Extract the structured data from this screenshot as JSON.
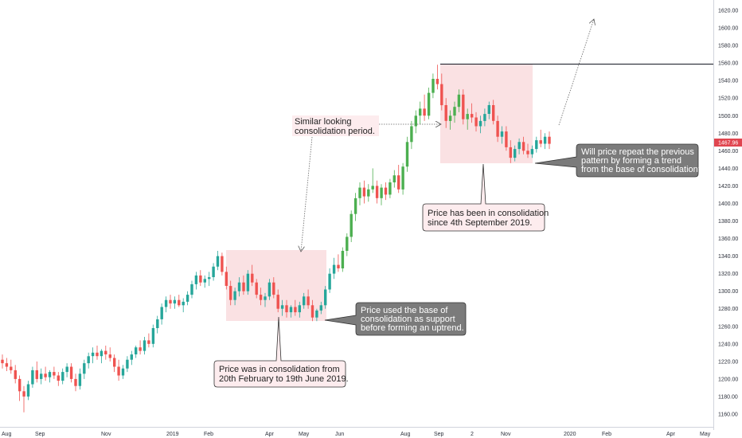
{
  "chart_data": {
    "type": "candlestick",
    "title": "",
    "xlabel": "",
    "ylabel": "",
    "ylim": [
      1150,
      1630
    ],
    "y_ticks": [
      1160,
      1180,
      1200,
      1220,
      1240,
      1260,
      1280,
      1300,
      1320,
      1340,
      1360,
      1380,
      1400,
      1420,
      1440,
      1460,
      1480,
      1500,
      1520,
      1540,
      1560,
      1580,
      1600,
      1620
    ],
    "x_ticks": [
      "Aug",
      "Sep",
      "Nov",
      "2019",
      "Feb",
      "Apr",
      "May",
      "Jun",
      "Aug",
      "Sep",
      "2",
      "Nov",
      "2020",
      "Feb",
      "Apr",
      "May"
    ],
    "last_price": "1467.96",
    "colors": {
      "up": "#26a69a",
      "up_bright": "#4caf50",
      "down": "#ef5350",
      "zone": "#f8d7da",
      "callout_light": "#fdecee",
      "callout_dark": "#7b7b7b",
      "price_tag": "#e0454f"
    },
    "resistance_level": 1558,
    "zones": [
      {
        "y_top": 1347,
        "y_bottom": 1267
      },
      {
        "y_top": 1558,
        "y_bottom": 1444
      }
    ],
    "annotations": {
      "similar": [
        "Similar looking",
        "consolidation period."
      ],
      "zone1_note": [
        "Price was in consolidation from",
        "20th February to 19th June 2019."
      ],
      "zone1_support": [
        "Price used the base of",
        "consolidation as support",
        "before forming an uptrend."
      ],
      "zone2_note": [
        "Price has been in consolidation",
        "since 4th September 2019."
      ],
      "question": [
        "Will price repeat the previous",
        "pattern by forming a trend",
        "from the base of consolidation?"
      ]
    },
    "series": [
      {
        "values": [
          {
            "o": 1222,
            "h": 1228,
            "l": 1212,
            "c": 1218
          },
          {
            "o": 1218,
            "h": 1224,
            "l": 1209,
            "c": 1214
          },
          {
            "o": 1214,
            "h": 1222,
            "l": 1206,
            "c": 1210
          },
          {
            "o": 1210,
            "h": 1216,
            "l": 1195,
            "c": 1200
          },
          {
            "o": 1200,
            "h": 1204,
            "l": 1175,
            "c": 1186
          },
          {
            "o": 1186,
            "h": 1192,
            "l": 1162,
            "c": 1180
          },
          {
            "o": 1180,
            "h": 1198,
            "l": 1176,
            "c": 1194
          },
          {
            "o": 1194,
            "h": 1214,
            "l": 1190,
            "c": 1210
          },
          {
            "o": 1210,
            "h": 1220,
            "l": 1196,
            "c": 1200
          },
          {
            "o": 1200,
            "h": 1212,
            "l": 1194,
            "c": 1206
          },
          {
            "o": 1206,
            "h": 1214,
            "l": 1198,
            "c": 1202
          },
          {
            "o": 1202,
            "h": 1210,
            "l": 1196,
            "c": 1208
          },
          {
            "o": 1208,
            "h": 1214,
            "l": 1200,
            "c": 1204
          },
          {
            "o": 1204,
            "h": 1208,
            "l": 1192,
            "c": 1198
          },
          {
            "o": 1198,
            "h": 1212,
            "l": 1194,
            "c": 1208
          },
          {
            "o": 1208,
            "h": 1218,
            "l": 1202,
            "c": 1214
          },
          {
            "o": 1214,
            "h": 1218,
            "l": 1196,
            "c": 1200
          },
          {
            "o": 1200,
            "h": 1206,
            "l": 1186,
            "c": 1192
          },
          {
            "o": 1192,
            "h": 1212,
            "l": 1188,
            "c": 1206
          },
          {
            "o": 1206,
            "h": 1222,
            "l": 1200,
            "c": 1218
          },
          {
            "o": 1218,
            "h": 1230,
            "l": 1212,
            "c": 1226
          },
          {
            "o": 1226,
            "h": 1236,
            "l": 1218,
            "c": 1230
          },
          {
            "o": 1230,
            "h": 1238,
            "l": 1222,
            "c": 1226
          },
          {
            "o": 1226,
            "h": 1234,
            "l": 1218,
            "c": 1232
          },
          {
            "o": 1232,
            "h": 1238,
            "l": 1222,
            "c": 1228
          },
          {
            "o": 1228,
            "h": 1236,
            "l": 1220,
            "c": 1224
          },
          {
            "o": 1224,
            "h": 1228,
            "l": 1208,
            "c": 1214
          },
          {
            "o": 1214,
            "h": 1222,
            "l": 1198,
            "c": 1204
          },
          {
            "o": 1204,
            "h": 1216,
            "l": 1200,
            "c": 1212
          },
          {
            "o": 1212,
            "h": 1226,
            "l": 1208,
            "c": 1222
          },
          {
            "o": 1222,
            "h": 1232,
            "l": 1216,
            "c": 1228
          },
          {
            "o": 1228,
            "h": 1238,
            "l": 1224,
            "c": 1236
          },
          {
            "o": 1236,
            "h": 1244,
            "l": 1228,
            "c": 1232
          },
          {
            "o": 1232,
            "h": 1248,
            "l": 1228,
            "c": 1244
          },
          {
            "o": 1244,
            "h": 1252,
            "l": 1236,
            "c": 1240
          },
          {
            "o": 1240,
            "h": 1262,
            "l": 1236,
            "c": 1258
          },
          {
            "o": 1258,
            "h": 1272,
            "l": 1252,
            "c": 1268
          },
          {
            "o": 1268,
            "h": 1286,
            "l": 1262,
            "c": 1282
          },
          {
            "o": 1282,
            "h": 1294,
            "l": 1276,
            "c": 1290
          },
          {
            "o": 1290,
            "h": 1296,
            "l": 1280,
            "c": 1286
          },
          {
            "o": 1286,
            "h": 1294,
            "l": 1280,
            "c": 1290
          },
          {
            "o": 1290,
            "h": 1296,
            "l": 1282,
            "c": 1284
          },
          {
            "o": 1284,
            "h": 1292,
            "l": 1276,
            "c": 1288
          },
          {
            "o": 1288,
            "h": 1300,
            "l": 1284,
            "c": 1296
          },
          {
            "o": 1296,
            "h": 1312,
            "l": 1292,
            "c": 1308
          },
          {
            "o": 1308,
            "h": 1322,
            "l": 1302,
            "c": 1318
          },
          {
            "o": 1318,
            "h": 1324,
            "l": 1306,
            "c": 1310
          },
          {
            "o": 1310,
            "h": 1318,
            "l": 1304,
            "c": 1314
          },
          {
            "o": 1314,
            "h": 1322,
            "l": 1306,
            "c": 1316
          },
          {
            "o": 1316,
            "h": 1332,
            "l": 1312,
            "c": 1328
          },
          {
            "o": 1328,
            "h": 1346,
            "l": 1324,
            "c": 1340
          },
          {
            "o": 1340,
            "h": 1344,
            "l": 1318,
            "c": 1322
          },
          {
            "o": 1322,
            "h": 1328,
            "l": 1302,
            "c": 1306
          },
          {
            "o": 1306,
            "h": 1312,
            "l": 1284,
            "c": 1290
          },
          {
            "o": 1290,
            "h": 1304,
            "l": 1284,
            "c": 1300
          },
          {
            "o": 1300,
            "h": 1316,
            "l": 1294,
            "c": 1310
          },
          {
            "o": 1310,
            "h": 1318,
            "l": 1296,
            "c": 1300
          },
          {
            "o": 1300,
            "h": 1324,
            "l": 1296,
            "c": 1320
          },
          {
            "o": 1320,
            "h": 1330,
            "l": 1306,
            "c": 1310
          },
          {
            "o": 1310,
            "h": 1314,
            "l": 1292,
            "c": 1296
          },
          {
            "o": 1296,
            "h": 1304,
            "l": 1284,
            "c": 1290
          },
          {
            "o": 1290,
            "h": 1298,
            "l": 1282,
            "c": 1294
          },
          {
            "o": 1294,
            "h": 1314,
            "l": 1290,
            "c": 1310
          },
          {
            "o": 1310,
            "h": 1316,
            "l": 1292,
            "c": 1296
          },
          {
            "o": 1296,
            "h": 1302,
            "l": 1276,
            "c": 1280
          },
          {
            "o": 1280,
            "h": 1290,
            "l": 1272,
            "c": 1284
          },
          {
            "o": 1284,
            "h": 1290,
            "l": 1270,
            "c": 1276
          },
          {
            "o": 1276,
            "h": 1284,
            "l": 1270,
            "c": 1282
          },
          {
            "o": 1282,
            "h": 1290,
            "l": 1272,
            "c": 1276
          },
          {
            "o": 1276,
            "h": 1288,
            "l": 1270,
            "c": 1284
          },
          {
            "o": 1284,
            "h": 1298,
            "l": 1280,
            "c": 1294
          },
          {
            "o": 1294,
            "h": 1302,
            "l": 1280,
            "c": 1284
          },
          {
            "o": 1284,
            "h": 1290,
            "l": 1266,
            "c": 1270
          },
          {
            "o": 1270,
            "h": 1280,
            "l": 1266,
            "c": 1278
          },
          {
            "o": 1278,
            "h": 1288,
            "l": 1274,
            "c": 1284
          },
          {
            "o": 1284,
            "h": 1306,
            "l": 1280,
            "c": 1302
          },
          {
            "o": 1302,
            "h": 1326,
            "l": 1298,
            "c": 1320
          },
          {
            "o": 1320,
            "h": 1338,
            "l": 1314,
            "c": 1330
          },
          {
            "o": 1330,
            "h": 1342,
            "l": 1322,
            "c": 1326
          },
          {
            "o": 1326,
            "h": 1350,
            "l": 1322,
            "c": 1346
          },
          {
            "o": 1346,
            "h": 1366,
            "l": 1340,
            "c": 1362
          },
          {
            "o": 1362,
            "h": 1392,
            "l": 1356,
            "c": 1388
          },
          {
            "o": 1388,
            "h": 1412,
            "l": 1380,
            "c": 1406
          },
          {
            "o": 1406,
            "h": 1424,
            "l": 1398,
            "c": 1418
          },
          {
            "o": 1418,
            "h": 1426,
            "l": 1400,
            "c": 1408
          },
          {
            "o": 1408,
            "h": 1422,
            "l": 1402,
            "c": 1416
          },
          {
            "o": 1416,
            "h": 1440,
            "l": 1412,
            "c": 1420
          },
          {
            "o": 1420,
            "h": 1426,
            "l": 1400,
            "c": 1406
          },
          {
            "o": 1406,
            "h": 1422,
            "l": 1398,
            "c": 1418
          },
          {
            "o": 1418,
            "h": 1424,
            "l": 1404,
            "c": 1410
          },
          {
            "o": 1410,
            "h": 1428,
            "l": 1406,
            "c": 1424
          },
          {
            "o": 1424,
            "h": 1438,
            "l": 1418,
            "c": 1432
          },
          {
            "o": 1432,
            "h": 1444,
            "l": 1412,
            "c": 1416
          },
          {
            "o": 1416,
            "h": 1446,
            "l": 1410,
            "c": 1442
          },
          {
            "o": 1442,
            "h": 1476,
            "l": 1436,
            "c": 1470
          },
          {
            "o": 1470,
            "h": 1494,
            "l": 1462,
            "c": 1488
          },
          {
            "o": 1488,
            "h": 1506,
            "l": 1480,
            "c": 1500
          },
          {
            "o": 1500,
            "h": 1516,
            "l": 1490,
            "c": 1508
          },
          {
            "o": 1508,
            "h": 1524,
            "l": 1494,
            "c": 1500
          },
          {
            "o": 1500,
            "h": 1532,
            "l": 1496,
            "c": 1526
          },
          {
            "o": 1526,
            "h": 1548,
            "l": 1520,
            "c": 1542
          },
          {
            "o": 1542,
            "h": 1558,
            "l": 1530,
            "c": 1536
          },
          {
            "o": 1536,
            "h": 1548,
            "l": 1506,
            "c": 1512
          },
          {
            "o": 1512,
            "h": 1520,
            "l": 1486,
            "c": 1494
          },
          {
            "o": 1494,
            "h": 1506,
            "l": 1484,
            "c": 1500
          },
          {
            "o": 1500,
            "h": 1516,
            "l": 1492,
            "c": 1510
          },
          {
            "o": 1510,
            "h": 1530,
            "l": 1504,
            "c": 1524
          },
          {
            "o": 1524,
            "h": 1530,
            "l": 1490,
            "c": 1496
          },
          {
            "o": 1496,
            "h": 1508,
            "l": 1484,
            "c": 1502
          },
          {
            "o": 1502,
            "h": 1514,
            "l": 1492,
            "c": 1498
          },
          {
            "o": 1498,
            "h": 1504,
            "l": 1482,
            "c": 1488
          },
          {
            "o": 1488,
            "h": 1500,
            "l": 1480,
            "c": 1494
          },
          {
            "o": 1494,
            "h": 1508,
            "l": 1488,
            "c": 1502
          },
          {
            "o": 1502,
            "h": 1516,
            "l": 1496,
            "c": 1512
          },
          {
            "o": 1512,
            "h": 1518,
            "l": 1490,
            "c": 1494
          },
          {
            "o": 1494,
            "h": 1500,
            "l": 1470,
            "c": 1476
          },
          {
            "o": 1476,
            "h": 1488,
            "l": 1468,
            "c": 1482
          },
          {
            "o": 1482,
            "h": 1488,
            "l": 1460,
            "c": 1464
          },
          {
            "o": 1464,
            "h": 1472,
            "l": 1446,
            "c": 1452
          },
          {
            "o": 1452,
            "h": 1466,
            "l": 1448,
            "c": 1462
          },
          {
            "o": 1462,
            "h": 1474,
            "l": 1456,
            "c": 1470
          },
          {
            "o": 1470,
            "h": 1476,
            "l": 1456,
            "c": 1460
          },
          {
            "o": 1460,
            "h": 1468,
            "l": 1452,
            "c": 1456
          },
          {
            "o": 1456,
            "h": 1466,
            "l": 1452,
            "c": 1462
          },
          {
            "o": 1462,
            "h": 1476,
            "l": 1458,
            "c": 1472
          },
          {
            "o": 1472,
            "h": 1484,
            "l": 1464,
            "c": 1468
          },
          {
            "o": 1468,
            "h": 1480,
            "l": 1462,
            "c": 1476
          },
          {
            "o": 1476,
            "h": 1482,
            "l": 1462,
            "c": 1467.96
          }
        ]
      }
    ]
  }
}
